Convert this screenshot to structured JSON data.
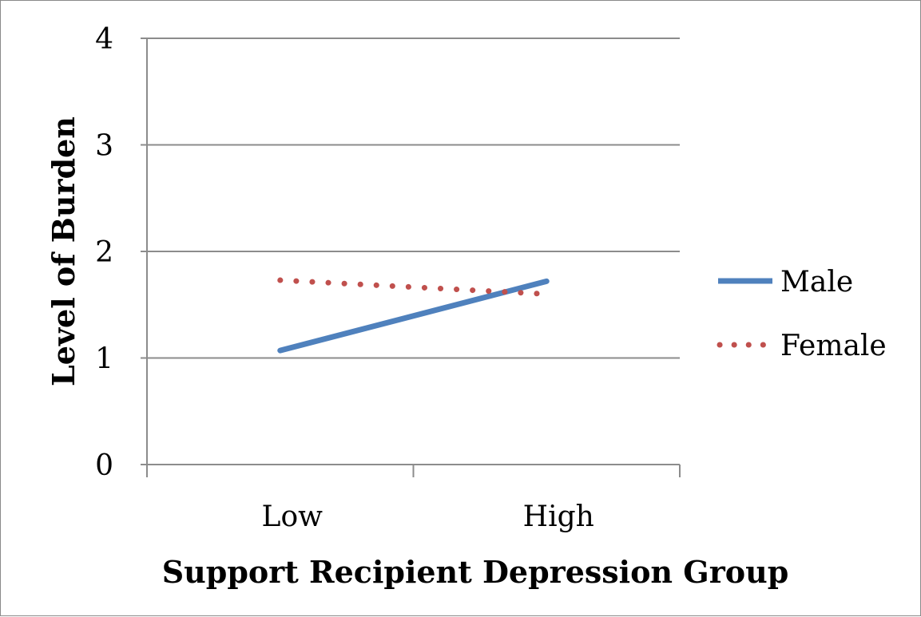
{
  "chart_data": {
    "type": "line",
    "title": "",
    "xlabel": "Support Recipient Depression Group",
    "ylabel": "Level of Burden",
    "categories": [
      "Low",
      "High"
    ],
    "ylim": [
      0,
      4
    ],
    "yticks": [
      "0",
      "1",
      "2",
      "3",
      "4"
    ],
    "grid": true,
    "legend_position": "right",
    "series": [
      {
        "name": "Male",
        "values": [
          1.07,
          1.72
        ],
        "color": "#4f81bd",
        "style": "solid"
      },
      {
        "name": "Female",
        "values": [
          1.73,
          1.6
        ],
        "color": "#c0504d",
        "style": "dotted"
      }
    ]
  }
}
